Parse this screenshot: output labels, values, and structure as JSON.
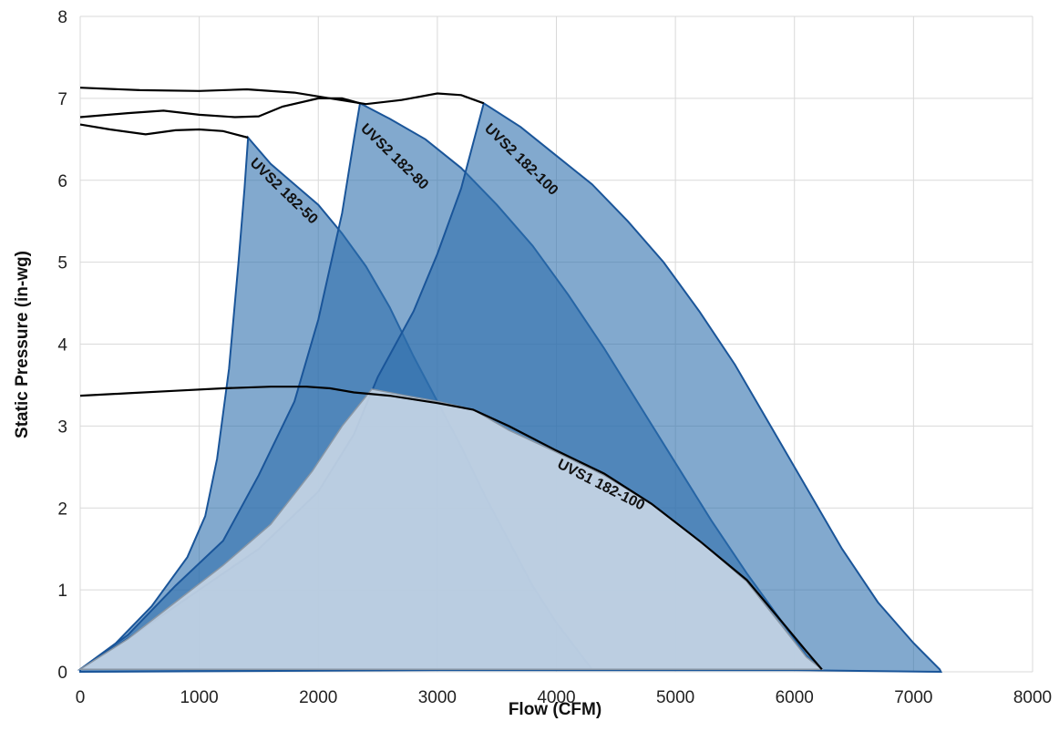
{
  "chart_data": {
    "type": "area",
    "title": "",
    "xlabel": "Flow (CFM)",
    "ylabel": "Static Pressure (in-wg)",
    "xlim": [
      0,
      8000
    ],
    "ylim": [
      0,
      8
    ],
    "x_ticks": [
      0,
      1000,
      2000,
      3000,
      4000,
      5000,
      6000,
      7000,
      8000
    ],
    "y_ticks": [
      0,
      1,
      2,
      3,
      4,
      5,
      6,
      7,
      8
    ],
    "grid": true,
    "legend": "none",
    "colors": {
      "region_fill": "#2e6fae",
      "region_stroke": "#1a5599",
      "uvs1_fill": "#c8d6e6",
      "curve": "#000000",
      "grid": "#d9d9d9"
    },
    "series": [
      {
        "name": "UVS2 182-50",
        "region": [
          [
            0,
            0.03
          ],
          [
            300,
            0.35
          ],
          [
            600,
            0.8
          ],
          [
            900,
            1.4
          ],
          [
            1050,
            1.9
          ],
          [
            1150,
            2.6
          ],
          [
            1250,
            3.7
          ],
          [
            1330,
            5.0
          ],
          [
            1380,
            5.9
          ],
          [
            1410,
            6.52
          ],
          [
            1600,
            6.2
          ],
          [
            1800,
            5.95
          ],
          [
            2000,
            5.7
          ],
          [
            2200,
            5.35
          ],
          [
            2400,
            4.95
          ],
          [
            2600,
            4.45
          ],
          [
            2800,
            3.85
          ],
          [
            3000,
            3.3
          ],
          [
            3200,
            2.75
          ],
          [
            3400,
            2.15
          ],
          [
            3600,
            1.6
          ],
          [
            3800,
            1.05
          ],
          [
            4000,
            0.6
          ],
          [
            4200,
            0.22
          ],
          [
            4300,
            0.03
          ]
        ],
        "curve": [
          [
            0,
            6.68
          ],
          [
            250,
            6.62
          ],
          [
            550,
            6.56
          ],
          [
            800,
            6.61
          ],
          [
            1000,
            6.62
          ],
          [
            1200,
            6.6
          ],
          [
            1410,
            6.52
          ]
        ],
        "label_anchor": [
          1420,
          6.2
        ]
      },
      {
        "name": "UVS2 182-80",
        "region": [
          [
            0,
            0.03
          ],
          [
            400,
            0.45
          ],
          [
            800,
            1.05
          ],
          [
            1200,
            1.6
          ],
          [
            1500,
            2.4
          ],
          [
            1800,
            3.3
          ],
          [
            2000,
            4.3
          ],
          [
            2200,
            5.6
          ],
          [
            2300,
            6.5
          ],
          [
            2350,
            6.94
          ],
          [
            2600,
            6.75
          ],
          [
            2900,
            6.5
          ],
          [
            3200,
            6.15
          ],
          [
            3500,
            5.7
          ],
          [
            3800,
            5.2
          ],
          [
            4100,
            4.6
          ],
          [
            4400,
            3.95
          ],
          [
            4700,
            3.25
          ],
          [
            5000,
            2.55
          ],
          [
            5300,
            1.85
          ],
          [
            5600,
            1.2
          ],
          [
            5900,
            0.6
          ],
          [
            6100,
            0.2
          ],
          [
            6230,
            0.03
          ]
        ],
        "curve": [
          [
            0,
            6.77
          ],
          [
            400,
            6.82
          ],
          [
            700,
            6.85
          ],
          [
            1000,
            6.8
          ],
          [
            1300,
            6.77
          ],
          [
            1500,
            6.78
          ],
          [
            1700,
            6.9
          ],
          [
            2000,
            7.0
          ],
          [
            2200,
            7.0
          ],
          [
            2350,
            6.94
          ]
        ],
        "label_anchor": [
          2350,
          6.62
        ]
      },
      {
        "name": "UVS2 182-100",
        "region": [
          [
            0,
            0.03
          ],
          [
            500,
            0.5
          ],
          [
            1000,
            1.0
          ],
          [
            1500,
            1.5
          ],
          [
            2000,
            2.2
          ],
          [
            2300,
            2.9
          ],
          [
            2500,
            3.6
          ],
          [
            2800,
            4.4
          ],
          [
            3000,
            5.1
          ],
          [
            3200,
            5.9
          ],
          [
            3390,
            6.94
          ],
          [
            3700,
            6.65
          ],
          [
            4000,
            6.3
          ],
          [
            4300,
            5.95
          ],
          [
            4600,
            5.5
          ],
          [
            4900,
            5.0
          ],
          [
            5200,
            4.4
          ],
          [
            5500,
            3.75
          ],
          [
            5800,
            3.0
          ],
          [
            6100,
            2.25
          ],
          [
            6400,
            1.5
          ],
          [
            6700,
            0.85
          ],
          [
            7000,
            0.35
          ],
          [
            7220,
            0.03
          ],
          [
            7230,
            0.0
          ],
          [
            6000,
            0.02
          ],
          [
            3000,
            0.02
          ],
          [
            0,
            0.0
          ]
        ],
        "curve": [
          [
            0,
            7.13
          ],
          [
            500,
            7.1
          ],
          [
            1000,
            7.09
          ],
          [
            1400,
            7.11
          ],
          [
            1800,
            7.07
          ],
          [
            2100,
            7.0
          ],
          [
            2400,
            6.93
          ],
          [
            2700,
            6.98
          ],
          [
            3000,
            7.06
          ],
          [
            3200,
            7.04
          ],
          [
            3390,
            6.94
          ]
        ],
        "label_anchor": [
          3390,
          6.62
        ]
      },
      {
        "name": "UVS1 182-100",
        "region": [
          [
            0,
            0.03
          ],
          [
            400,
            0.4
          ],
          [
            800,
            0.85
          ],
          [
            1200,
            1.3
          ],
          [
            1600,
            1.8
          ],
          [
            1950,
            2.45
          ],
          [
            2200,
            3.0
          ],
          [
            2450,
            3.45
          ],
          [
            2700,
            3.38
          ],
          [
            3000,
            3.3
          ],
          [
            3300,
            3.2
          ],
          [
            3600,
            2.95
          ],
          [
            4000,
            2.68
          ],
          [
            4400,
            2.4
          ],
          [
            4800,
            2.05
          ],
          [
            5200,
            1.6
          ],
          [
            5600,
            1.1
          ],
          [
            5900,
            0.55
          ],
          [
            6100,
            0.18
          ],
          [
            6230,
            0.03
          ]
        ],
        "curve": [
          [
            0,
            3.37
          ],
          [
            400,
            3.4
          ],
          [
            800,
            3.43
          ],
          [
            1200,
            3.46
          ],
          [
            1600,
            3.48
          ],
          [
            1900,
            3.48
          ],
          [
            2100,
            3.46
          ],
          [
            2300,
            3.41
          ],
          [
            2600,
            3.37
          ],
          [
            3000,
            3.28
          ],
          [
            3300,
            3.2
          ],
          [
            3600,
            3.0
          ],
          [
            4000,
            2.7
          ],
          [
            4400,
            2.42
          ],
          [
            4800,
            2.05
          ],
          [
            5200,
            1.6
          ],
          [
            5600,
            1.12
          ],
          [
            5900,
            0.6
          ],
          [
            6100,
            0.25
          ],
          [
            6230,
            0.03
          ]
        ],
        "label_anchor": [
          4000,
          2.5
        ]
      }
    ]
  }
}
